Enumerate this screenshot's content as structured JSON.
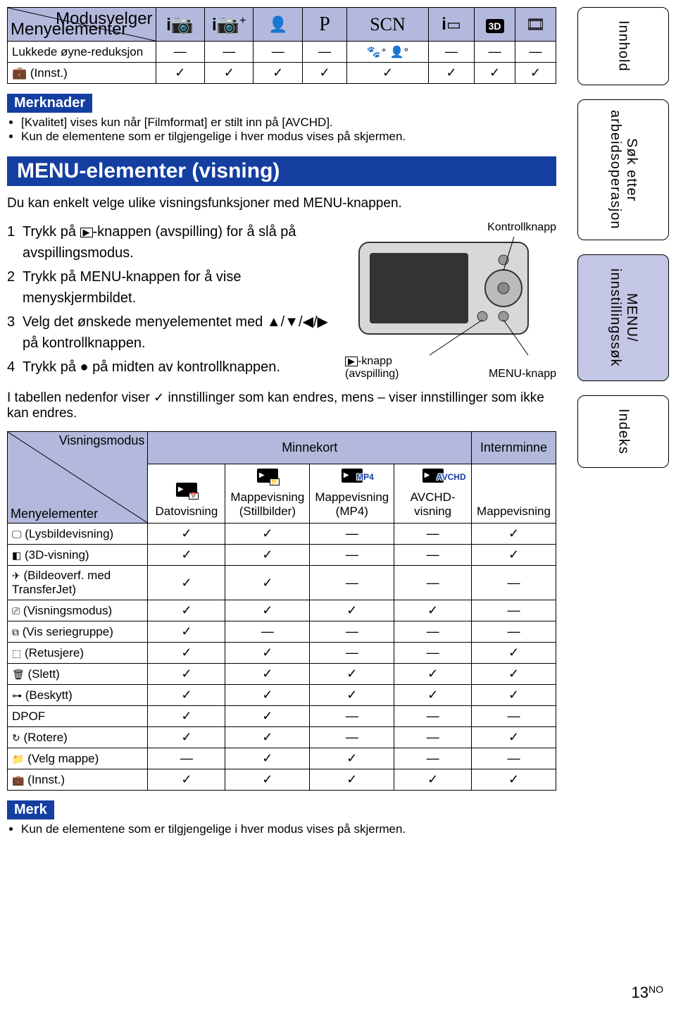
{
  "table1": {
    "diag_tr": "Modusvelger",
    "diag_bl": "Menyelementer",
    "mode_p": "P",
    "mode_scn": "SCN",
    "row1_label": "Lukkede øyne-reduksjon",
    "inst_label": " (Innst.)"
  },
  "merknader": {
    "badge": "Merknader",
    "n1": "[Kvalitet] vises kun når [Filmformat] er stilt inn på [AVCHD].",
    "n2": "Kun de elementene som er tilgjengelige i hver modus vises på skjermen."
  },
  "section_title": "MENU-elementer (visning)",
  "intro": "Du kan enkelt velge ulike visningsfunksjoner med MENU-knappen.",
  "steps": {
    "s1a": "Trykk på ",
    "s1b": "-knappen (avspilling) for å slå på avspillingsmodus.",
    "s2": "Trykk på MENU-knappen for å vise menyskjermbildet.",
    "s3": "Velg det ønskede menyelementet med ▲/▼/◀/▶ på kontrollknappen.",
    "s4": "Trykk på ● på midten av kontrollknappen."
  },
  "camera": {
    "kontroll": "Kontrollknapp",
    "playbtn_a": "-knapp",
    "playbtn_b": "(avspilling)",
    "menu": "MENU-knapp"
  },
  "table_intro_a": "I tabellen nedenfor viser ",
  "table_intro_b": " innstillinger som kan endres, mens – viser innstillinger som ikke kan endres.",
  "table2": {
    "h_visn": "Visningsmodus",
    "h_minne": "Minnekort",
    "h_intern": "Internminne",
    "menyel": "Menyelementer",
    "c1": "Datovisning",
    "c2": "Mappevisning (Stillbilder)",
    "c3": "Mappevisning (MP4)",
    "c4": "AVCHD-visning",
    "c5": "Mappevisning",
    "c3_tag": "MP4",
    "c4_tag": "AVCHD",
    "rows": [
      {
        "icon": "🖵",
        "label": " (Lysbildevisning)",
        "v": [
          "✓",
          "✓",
          "—",
          "—",
          "✓"
        ]
      },
      {
        "icon": "◧",
        "label": " (3D-visning)",
        "v": [
          "✓",
          "✓",
          "—",
          "—",
          "✓"
        ]
      },
      {
        "icon": "✈",
        "label": " (Bildeoverf. med TransferJet)",
        "v": [
          "✓",
          "✓",
          "—",
          "—",
          "—"
        ]
      },
      {
        "icon": "⎚",
        "label": " (Visningsmodus)",
        "v": [
          "✓",
          "✓",
          "✓",
          "✓",
          "—"
        ]
      },
      {
        "icon": "⧉",
        "label": " (Vis seriegruppe)",
        "v": [
          "✓",
          "—",
          "—",
          "—",
          "—"
        ]
      },
      {
        "icon": "⬚",
        "label": " (Retusjere)",
        "v": [
          "✓",
          "✓",
          "—",
          "—",
          "✓"
        ]
      },
      {
        "icon": "🗑",
        "label": " (Slett)",
        "v": [
          "✓",
          "✓",
          "✓",
          "✓",
          "✓"
        ]
      },
      {
        "icon": "⊶",
        "label": " (Beskytt)",
        "v": [
          "✓",
          "✓",
          "✓",
          "✓",
          "✓"
        ]
      },
      {
        "icon": "",
        "label": "DPOF",
        "v": [
          "✓",
          "✓",
          "—",
          "—",
          "—"
        ]
      },
      {
        "icon": "↻",
        "label": " (Rotere)",
        "v": [
          "✓",
          "✓",
          "—",
          "—",
          "✓"
        ]
      },
      {
        "icon": "📁",
        "label": " (Velg mappe)",
        "v": [
          "—",
          "✓",
          "✓",
          "—",
          "—"
        ]
      },
      {
        "icon": "💼",
        "label": " (Innst.)",
        "v": [
          "✓",
          "✓",
          "✓",
          "✓",
          "✓"
        ]
      }
    ]
  },
  "merk": {
    "badge": "Merk",
    "n1": "Kun de elementene som er tilgjengelige i hver modus vises på skjermen."
  },
  "sidebar": {
    "t1": "Innhold",
    "t2a": "Søk etter",
    "t2b": "arbeidsoperasjon",
    "t3a": "MENU/",
    "t3b": "innstillingssøk",
    "t4": "Indeks"
  },
  "page": {
    "num": "13",
    "suffix": "NO"
  }
}
